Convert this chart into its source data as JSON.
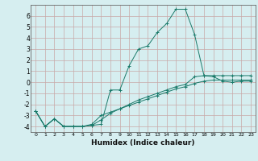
{
  "xlabel": "Humidex (Indice chaleur)",
  "background_color": "#d6eef0",
  "grid_color": "#c8a8a8",
  "line_color": "#1a7a6a",
  "xlim": [
    -0.5,
    23.5
  ],
  "ylim": [
    -4.5,
    7.0
  ],
  "yticks": [
    -4,
    -3,
    -2,
    -1,
    0,
    1,
    2,
    3,
    4,
    5,
    6
  ],
  "xticks": [
    0,
    1,
    2,
    3,
    4,
    5,
    6,
    7,
    8,
    9,
    10,
    11,
    12,
    13,
    14,
    15,
    16,
    17,
    18,
    19,
    20,
    21,
    22,
    23
  ],
  "curve1_x": [
    0,
    1,
    2,
    3,
    4,
    5,
    6,
    7,
    8,
    9,
    10,
    11,
    12,
    13,
    14,
    15,
    16,
    17,
    18,
    19,
    20,
    21,
    22,
    23
  ],
  "curve1_y": [
    -2.6,
    -4.0,
    -3.3,
    -4.0,
    -4.0,
    -4.0,
    -3.9,
    -3.8,
    -0.7,
    -0.7,
    1.5,
    3.0,
    3.3,
    4.5,
    5.3,
    6.6,
    6.6,
    4.3,
    0.6,
    0.5,
    0.1,
    0.0,
    0.1,
    0.1
  ],
  "curve2_x": [
    0,
    1,
    2,
    3,
    4,
    5,
    6,
    7,
    8,
    9,
    10,
    11,
    12,
    13,
    14,
    15,
    16,
    17,
    18,
    19,
    20,
    21,
    22,
    23
  ],
  "curve2_y": [
    -2.6,
    -4.0,
    -3.3,
    -4.0,
    -4.0,
    -4.0,
    -3.8,
    -3.0,
    -2.7,
    -2.4,
    -2.1,
    -1.8,
    -1.5,
    -1.2,
    -0.9,
    -0.6,
    -0.4,
    -0.1,
    0.1,
    0.2,
    0.2,
    0.2,
    0.2,
    0.2
  ],
  "curve3_x": [
    0,
    1,
    2,
    3,
    4,
    5,
    6,
    7,
    8,
    9,
    10,
    11,
    12,
    13,
    14,
    15,
    16,
    17,
    18,
    19,
    20,
    21,
    22,
    23
  ],
  "curve3_y": [
    -2.6,
    -4.0,
    -3.3,
    -4.0,
    -4.0,
    -4.0,
    -3.9,
    -3.4,
    -2.8,
    -2.4,
    -2.0,
    -1.6,
    -1.3,
    -1.0,
    -0.7,
    -0.4,
    -0.2,
    0.5,
    0.6,
    0.6,
    0.6,
    0.6,
    0.6,
    0.6
  ]
}
